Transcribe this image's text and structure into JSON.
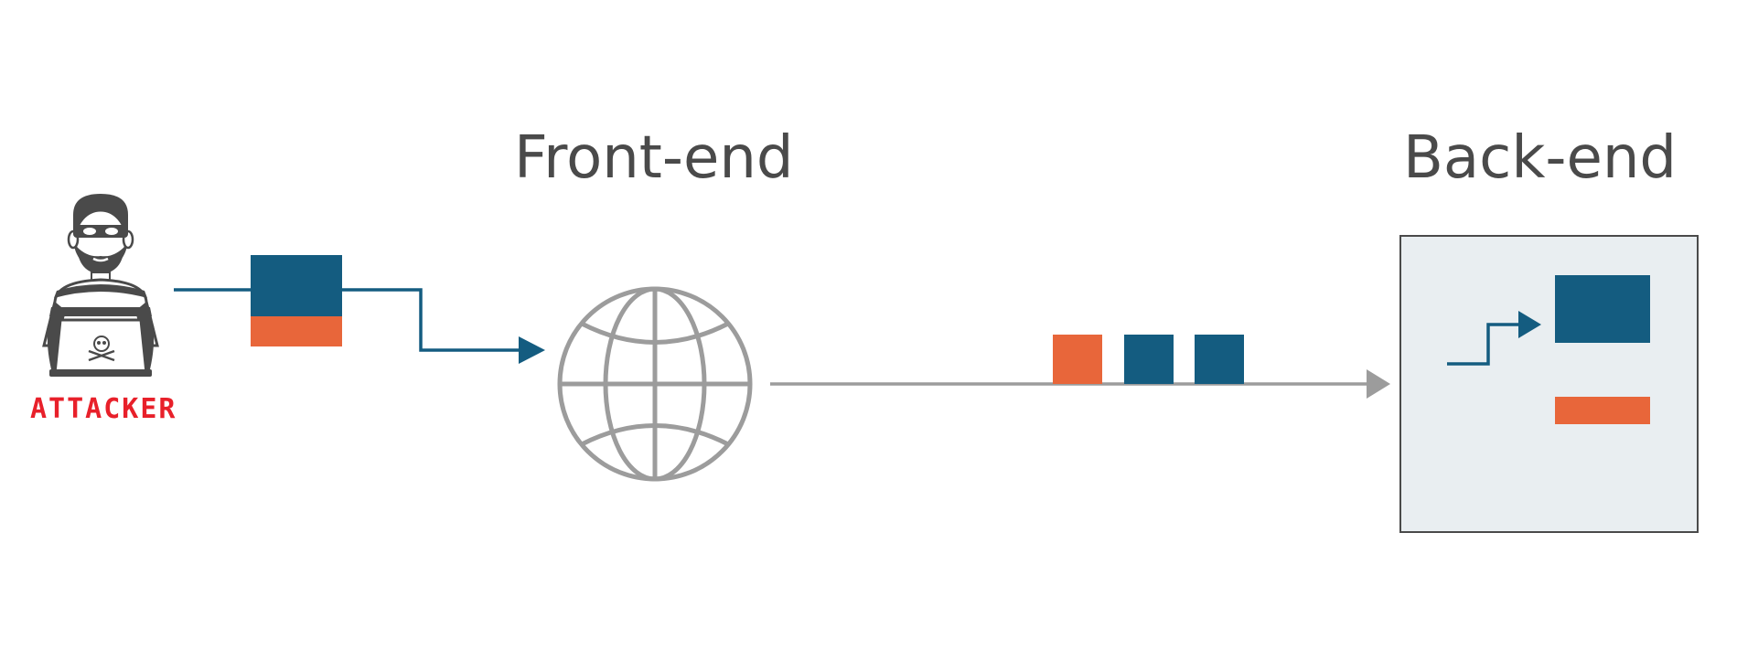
{
  "diagram": {
    "attacker": {
      "label": "ATTACKER",
      "icon": "hacker-icon",
      "label_color": "#e8202a"
    },
    "frontend": {
      "title": "Front-end",
      "icon": "globe-icon"
    },
    "backend": {
      "title": "Back-end",
      "panel_fill": "#e9eef1"
    },
    "colors": {
      "request_primary": "#145c80",
      "request_smuggled": "#e8663a",
      "connector_gray": "#9c9c9c",
      "text_dark": "#4a4a4a"
    }
  }
}
